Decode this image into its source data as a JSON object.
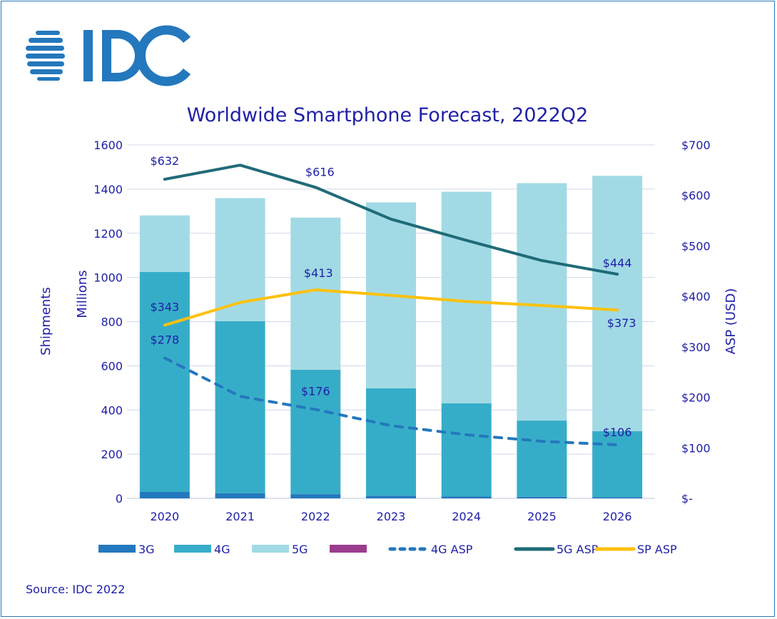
{
  "logo": {
    "text": "IDC",
    "color": "#2478bd"
  },
  "source": "Source: IDC 2022",
  "chart_data": {
    "type": "bar",
    "stacked": true,
    "title": "Worldwide Smartphone Forecast, 2022Q2",
    "ylabel_left": "Shipments",
    "ylabel_left_unit": "Millions",
    "ylabel_right": "ASP (USD)",
    "categories": [
      "2020",
      "2021",
      "2022",
      "2023",
      "2024",
      "2025",
      "2026"
    ],
    "ylim_left": [
      0,
      1600
    ],
    "yticks_left": [
      "0",
      "200",
      "400",
      "600",
      "800",
      "1000",
      "1200",
      "1400",
      "1600"
    ],
    "ylim_right": [
      0,
      700
    ],
    "yticks_right": [
      "$-",
      "$100",
      "$200",
      "$300",
      "$400",
      "$500",
      "$600",
      "$700"
    ],
    "grid": true,
    "legend_position": "bottom",
    "series": [
      {
        "name": "3G",
        "kind": "bar",
        "color": "#2478bd",
        "values": [
          29,
          23,
          19,
          12,
          8,
          7,
          5
        ]
      },
      {
        "name": "4G",
        "kind": "bar",
        "color": "#36adc8",
        "values": [
          996,
          779,
          563,
          486,
          422,
          345,
          299
        ]
      },
      {
        "name": "5G",
        "kind": "bar",
        "color": "#a1dae5",
        "values": [
          256,
          557,
          689,
          842,
          958,
          1075,
          1156
        ]
      },
      {
        "name": "",
        "kind": "bar",
        "color": "#9b3d8e",
        "values": [
          0,
          0,
          0,
          0,
          0,
          0,
          0
        ]
      },
      {
        "name": "4G ASP",
        "kind": "line",
        "axis": "right",
        "dashed": true,
        "color": "#2478bd",
        "values": [
          278,
          202,
          176,
          144,
          126,
          113,
          106
        ],
        "data_labels": [
          {
            "index": 0,
            "text": "$278"
          },
          {
            "index": 2,
            "text": "$176"
          },
          {
            "index": 6,
            "text": "$106"
          }
        ]
      },
      {
        "name": "5G ASP",
        "kind": "line",
        "axis": "right",
        "color": "#1f6b78",
        "values": [
          632,
          660,
          616,
          553,
          511,
          471,
          444
        ],
        "data_labels": [
          {
            "index": 0,
            "text": "$632"
          },
          {
            "index": 2,
            "text": "$616"
          },
          {
            "index": 6,
            "text": "$444"
          }
        ]
      },
      {
        "name": "SP ASP",
        "kind": "line",
        "axis": "right",
        "color": "#fdc110",
        "values": [
          343,
          388,
          413,
          402,
          390,
          382,
          373
        ],
        "data_labels": [
          {
            "index": 0,
            "text": "$343"
          },
          {
            "index": 2,
            "text": "$413"
          },
          {
            "index": 6,
            "text": "$373"
          }
        ]
      }
    ]
  }
}
